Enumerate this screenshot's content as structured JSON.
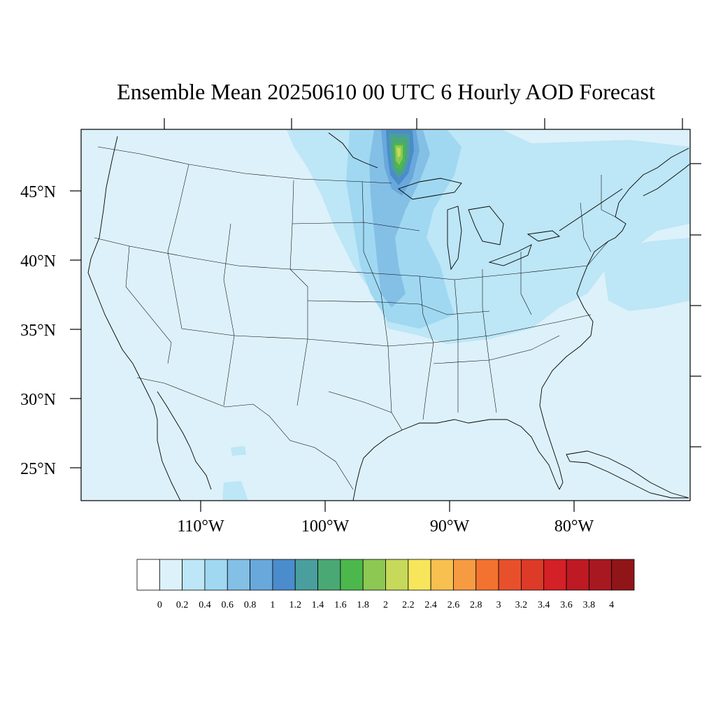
{
  "title": "Ensemble Mean 20250610 00 UTC 6 Hourly AOD Forecast",
  "map": {
    "lat_labels": [
      "45°N",
      "40°N",
      "35°N",
      "30°N",
      "25°N"
    ],
    "lon_labels": [
      "110°W",
      "100°W",
      "90°W",
      "80°W"
    ],
    "background_color": "#ddf1fa"
  },
  "colorbar": {
    "colors": [
      "#ffffff",
      "#ddf1fa",
      "#bde6f6",
      "#a0d8f2",
      "#84bfe6",
      "#68a8db",
      "#4a8ccc",
      "#4a9e9e",
      "#4aa874",
      "#4cb84c",
      "#8dc853",
      "#c6d95a",
      "#f7e65c",
      "#f7c04f",
      "#f79b42",
      "#f37230",
      "#e8502c",
      "#de3a28",
      "#d42027",
      "#bd1a24",
      "#a81820",
      "#901518"
    ],
    "labels": [
      "0",
      "0.2",
      "0.4",
      "0.6",
      "0.8",
      "1",
      "1.2",
      "1.4",
      "1.6",
      "1.8",
      "2",
      "2.2",
      "2.4",
      "2.6",
      "2.8",
      "3",
      "3.2",
      "3.4",
      "3.6",
      "3.8",
      "4"
    ]
  }
}
